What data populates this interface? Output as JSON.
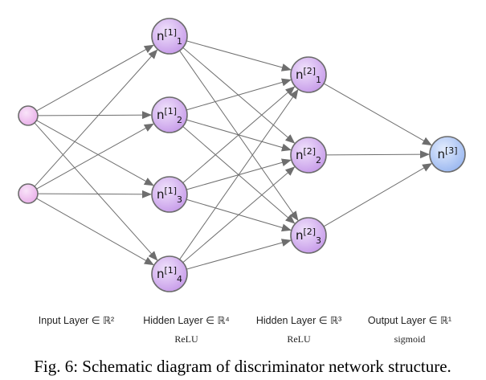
{
  "nodes": {
    "input": [
      "",
      ""
    ],
    "hidden1": [
      {
        "base": "n",
        "sup": "[1]",
        "sub": "1"
      },
      {
        "base": "n",
        "sup": "[1]",
        "sub": "2"
      },
      {
        "base": "n",
        "sup": "[1]",
        "sub": "3"
      },
      {
        "base": "n",
        "sup": "[1]",
        "sub": "4"
      }
    ],
    "hidden2": [
      {
        "base": "n",
        "sup": "[2]",
        "sub": "1"
      },
      {
        "base": "n",
        "sup": "[2]",
        "sub": "2"
      },
      {
        "base": "n",
        "sup": "[2]",
        "sub": "3"
      }
    ],
    "output": [
      {
        "base": "n",
        "sup": "[3]",
        "sub": ""
      }
    ]
  },
  "layers": [
    {
      "label": "Input Layer ∈ ℝ²",
      "activation": ""
    },
    {
      "label": "Hidden Layer ∈ ℝ⁴",
      "activation": "ReLU"
    },
    {
      "label": "Hidden Layer ∈ ℝ³",
      "activation": "ReLU"
    },
    {
      "label": "Output Layer ∈ ℝ¹",
      "activation": "sigmoid"
    }
  ],
  "caption": "Fig. 6: Schematic diagram of discriminator network structure.",
  "colors": {
    "input_fill": "#eeb8ee",
    "hidden_fill": "#d4a8f0",
    "output_fill": "#a9c3f5",
    "edge": "#6e6e6e"
  }
}
